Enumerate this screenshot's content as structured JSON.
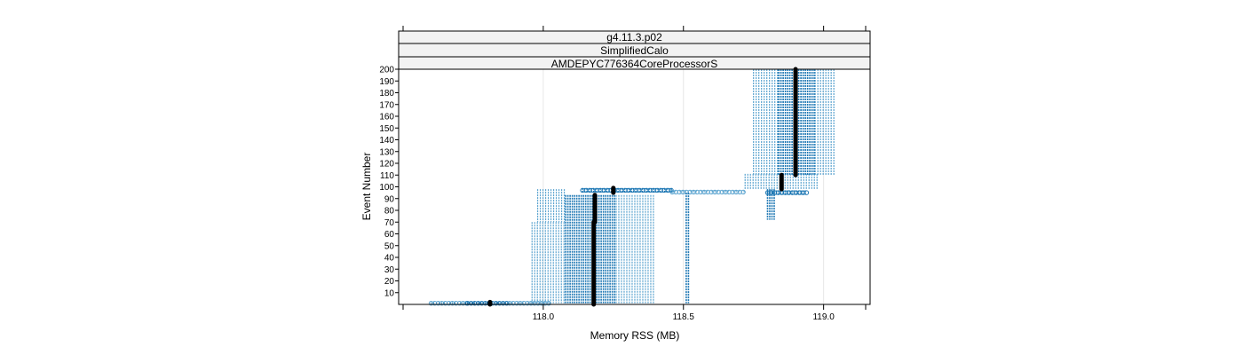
{
  "chart_data": {
    "type": "scatter",
    "strips": [
      "g4.11.3.p02",
      "SimplifiedCalo",
      "AMDEPYC776364CoreProcessorS"
    ],
    "xlabel": "Memory RSS (MB)",
    "ylabel": "Event Number",
    "xlim": [
      117.5,
      119.15
    ],
    "ylim": [
      0,
      200
    ],
    "xticks": [
      118.0,
      118.5,
      119.0
    ],
    "xtick_labels": [
      "118.0",
      "118.5",
      "119.0"
    ],
    "yticks": [
      10,
      20,
      30,
      40,
      50,
      60,
      70,
      80,
      90,
      100,
      110,
      120,
      130,
      140,
      150,
      160,
      170,
      180,
      190,
      200
    ],
    "ytick_labels": [
      "10",
      "20",
      "30",
      "40",
      "50",
      "60",
      "70",
      "80",
      "90",
      "100",
      "110",
      "120",
      "130",
      "140",
      "150",
      "160",
      "170",
      "180",
      "190",
      "200"
    ],
    "grid_x": true,
    "colors": {
      "points": "#1f78b4",
      "points_light": "#a6cee3",
      "medians": "#000000"
    },
    "point_bands": [
      {
        "x": [
          117.6,
          117.73
        ],
        "y": [
          0,
          2
        ],
        "density": "light"
      },
      {
        "x": [
          117.73,
          117.88
        ],
        "y": [
          0,
          2
        ],
        "density": "dense"
      },
      {
        "x": [
          117.88,
          118.03
        ],
        "y": [
          0,
          2
        ],
        "density": "light"
      },
      {
        "x": [
          117.96,
          118.08
        ],
        "y": [
          1,
          70
        ],
        "density": "light"
      },
      {
        "x": [
          117.98,
          118.08
        ],
        "y": [
          70,
          98
        ],
        "density": "light"
      },
      {
        "x": [
          118.08,
          118.26
        ],
        "y": [
          1,
          93
        ],
        "density": "dense"
      },
      {
        "x": [
          118.26,
          118.4
        ],
        "y": [
          1,
          93
        ],
        "density": "light"
      },
      {
        "x": [
          118.14,
          118.46
        ],
        "y": [
          95,
          99
        ],
        "density": "dense"
      },
      {
        "x": [
          118.46,
          118.72
        ],
        "y": [
          94,
          97
        ],
        "density": "light"
      },
      {
        "x": [
          118.51,
          118.52
        ],
        "y": [
          1,
          95
        ],
        "density": "dense"
      },
      {
        "x": [
          118.72,
          118.98
        ],
        "y": [
          98,
          111
        ],
        "density": "light"
      },
      {
        "x": [
          118.75,
          118.84
        ],
        "y": [
          110,
          200
        ],
        "density": "light"
      },
      {
        "x": [
          118.84,
          118.97
        ],
        "y": [
          110,
          200
        ],
        "density": "dense"
      },
      {
        "x": [
          118.97,
          119.04
        ],
        "y": [
          110,
          200
        ],
        "density": "light"
      },
      {
        "x": [
          118.8,
          118.83
        ],
        "y": [
          72,
          98
        ],
        "density": "dense"
      },
      {
        "x": [
          118.8,
          118.94
        ],
        "y": [
          93,
          97
        ],
        "density": "dense"
      }
    ],
    "median_lines": [
      {
        "x": 117.81,
        "y": [
          0,
          2
        ]
      },
      {
        "x": 118.18,
        "y": [
          0,
          70
        ]
      },
      {
        "x": 118.184,
        "y": [
          70,
          93
        ]
      },
      {
        "x": 118.25,
        "y": [
          95,
          99
        ]
      },
      {
        "x": 118.85,
        "y": [
          98,
          110
        ]
      },
      {
        "x": 118.9,
        "y": [
          110,
          200
        ]
      }
    ]
  }
}
